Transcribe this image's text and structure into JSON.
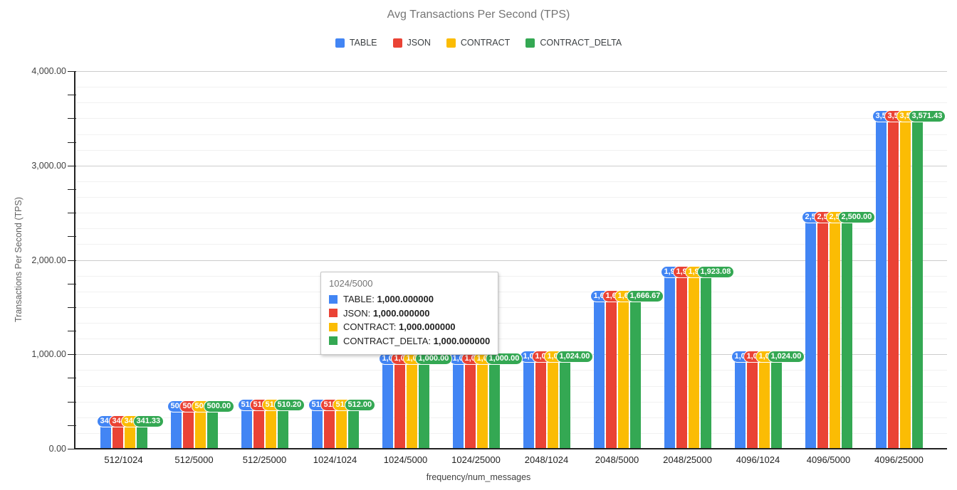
{
  "title": "Avg Transactions Per Second (TPS)",
  "legend": {
    "items": [
      {
        "label": "TABLE",
        "color": "#4285F4"
      },
      {
        "label": "JSON",
        "color": "#EA4335"
      },
      {
        "label": "CONTRACT",
        "color": "#FBBC04"
      },
      {
        "label": "CONTRACT_DELTA",
        "color": "#34A853"
      }
    ]
  },
  "axes": {
    "y_title": "Transactions Per Second (TPS)",
    "x_title": "frequency/num_messages",
    "y_tick_labels": [
      "0.00",
      "1,000.00",
      "2,000.00",
      "3,000.00",
      "4,000.00"
    ]
  },
  "chart_data": {
    "type": "bar",
    "title": "Avg Transactions Per Second (TPS)",
    "xlabel": "frequency/num_messages",
    "ylabel": "Transactions Per Second (TPS)",
    "ylim": [
      0,
      4000
    ],
    "y_major_step": 1000,
    "y_minor_intervals_per_major": 6,
    "grid": true,
    "legend_position": "top",
    "categories": [
      "512/1024",
      "512/5000",
      "512/25000",
      "1024/1024",
      "1024/5000",
      "1024/25000",
      "2048/1024",
      "2048/5000",
      "2048/25000",
      "4096/1024",
      "4096/5000",
      "4096/25000"
    ],
    "series": [
      {
        "name": "TABLE",
        "color": "#4285F4",
        "values": [
          341.33,
          500.0,
          510.2,
          512.0,
          1000.0,
          1000.0,
          1024.0,
          1666.67,
          1923.08,
          1024.0,
          2500.0,
          3571.43
        ]
      },
      {
        "name": "JSON",
        "color": "#EA4335",
        "values": [
          341.33,
          500.0,
          510.2,
          512.0,
          1000.0,
          1000.0,
          1024.0,
          1666.67,
          1923.08,
          1024.0,
          2500.0,
          3571.43
        ]
      },
      {
        "name": "CONTRACT",
        "color": "#FBBC04",
        "values": [
          341.33,
          500.0,
          510.2,
          512.0,
          1000.0,
          1000.0,
          1024.0,
          1666.67,
          1923.08,
          1024.0,
          2500.0,
          3571.43
        ]
      },
      {
        "name": "CONTRACT_DELTA",
        "color": "#34A853",
        "values": [
          341.33,
          500.0,
          510.2,
          512.0,
          1000.0,
          1000.0,
          1024.0,
          1666.67,
          1923.08,
          1024.0,
          2500.0,
          3571.43
        ]
      }
    ],
    "value_labels": [
      "341.33",
      "500.00",
      "510.20",
      "512.00",
      "1,000.00",
      "1,000.00",
      "1,024.00",
      "1,666.67",
      "1,923.08",
      "1,024.00",
      "2,500.00",
      "3,571.43"
    ]
  },
  "tooltip": {
    "category": "1024/5000",
    "rows": [
      {
        "name": "TABLE",
        "value": "1,000.000000",
        "color": "#4285F4"
      },
      {
        "name": "JSON",
        "value": "1,000.000000",
        "color": "#EA4335"
      },
      {
        "name": "CONTRACT",
        "value": "1,000.000000",
        "color": "#FBBC04"
      },
      {
        "name": "CONTRACT_DELTA",
        "value": "1,000.000000",
        "color": "#34A853"
      }
    ]
  }
}
